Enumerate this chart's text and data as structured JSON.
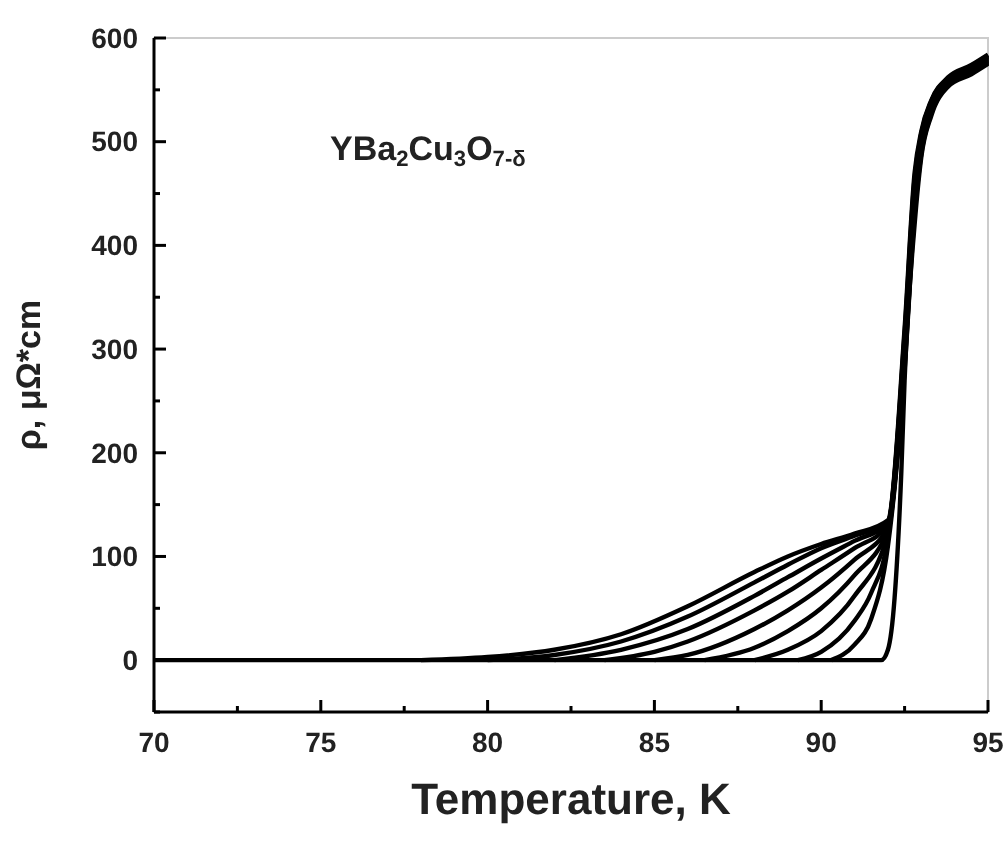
{
  "chart_data": {
    "type": "line",
    "xlabel": "Temperature, K",
    "ylabel": "ρ, μΩ*cm",
    "annotations": [
      "YBa$_{2}$Cu$_{3}$O$_{7-δ}$"
    ],
    "xlim": [
      70,
      95
    ],
    "ylim": [
      -50,
      600
    ],
    "xticks": [
      70,
      {
        "value": 72.5,
        "label": null
      },
      75,
      {
        "value": 77.5,
        "label": null
      },
      80,
      {
        "value": 82.5,
        "label": null
      },
      85,
      {
        "value": 87.5,
        "label": null
      },
      90,
      {
        "value": 92.5,
        "label": null
      },
      95
    ],
    "yticks": [
      {
        "value": -50,
        "label": null
      },
      0,
      {
        "value": 50,
        "label": null
      },
      100,
      {
        "value": 150,
        "label": null
      },
      200,
      {
        "value": 250,
        "label": null
      },
      300,
      {
        "value": 350,
        "label": null
      },
      400,
      {
        "value": 450,
        "label": null
      },
      500,
      {
        "value": 550,
        "label": null
      },
      600
    ],
    "line_style": "solid",
    "grid": false,
    "series": [
      {
        "color": "#000000",
        "x": [
          78,
          80,
          82,
          84,
          86,
          88,
          89,
          90,
          91,
          92,
          92.5,
          92.8,
          93,
          93.3,
          93.8,
          94.5,
          95
        ],
        "values": [
          0,
          3,
          10,
          25,
          52,
          85,
          100,
          112,
          122,
          135,
          320,
          470,
          510,
          540,
          562,
          574,
          584
        ]
      },
      {
        "color": "#000000",
        "x": [
          80,
          82,
          84,
          86,
          88,
          89,
          90,
          91,
          92,
          92.5,
          92.8,
          93,
          93.3,
          93.8,
          94.5,
          95
        ],
        "values": [
          0,
          5,
          18,
          42,
          75,
          92,
          108,
          120,
          133,
          315,
          465,
          508,
          539,
          561,
          573,
          583
        ]
      },
      {
        "color": "#000000",
        "x": [
          82,
          84,
          86,
          88,
          89,
          90,
          91,
          92,
          92.5,
          92.8,
          93,
          93.3,
          93.8,
          94.5,
          95
        ],
        "values": [
          0,
          10,
          30,
          62,
          80,
          98,
          115,
          132,
          310,
          460,
          505,
          538,
          560,
          572,
          582
        ]
      },
      {
        "color": "#000000",
        "x": [
          83.5,
          85,
          86,
          88,
          89,
          90,
          91,
          92,
          92.5,
          92.8,
          93,
          93.3,
          93.8,
          94.5,
          95
        ],
        "values": [
          0,
          8,
          18,
          48,
          66,
          87,
          108,
          130,
          305,
          455,
          502,
          536,
          559,
          571,
          581
        ]
      },
      {
        "color": "#000000",
        "x": [
          85,
          86,
          88,
          89,
          90,
          91,
          92,
          92.5,
          92.8,
          93,
          93.3,
          93.8,
          94.5,
          95
        ],
        "values": [
          0,
          5,
          30,
          48,
          70,
          97,
          128,
          300,
          450,
          500,
          535,
          558,
          570,
          580
        ]
      },
      {
        "color": "#000000",
        "x": [
          86.5,
          88,
          89,
          90,
          91,
          92,
          92.5,
          92.8,
          93,
          93.3,
          93.8,
          94.5,
          95
        ],
        "values": [
          0,
          12,
          28,
          50,
          82,
          126,
          295,
          445,
          497,
          533,
          557,
          569,
          579
        ]
      },
      {
        "color": "#000000",
        "x": [
          88,
          89,
          90,
          91,
          92,
          92.5,
          92.8,
          93,
          93.3,
          93.8,
          94.5,
          95
        ],
        "values": [
          0,
          10,
          28,
          62,
          122,
          290,
          440,
          494,
          531,
          556,
          568,
          578
        ]
      },
      {
        "color": "#000000",
        "x": [
          89.3,
          90,
          91,
          91.5,
          92,
          92.5,
          92.8,
          93,
          93.3,
          93.8,
          94.5,
          95
        ],
        "values": [
          0,
          8,
          38,
          65,
          118,
          285,
          435,
          491,
          529,
          555,
          567,
          577
        ]
      },
      {
        "color": "#000000",
        "x": [
          90.3,
          91,
          91.5,
          92,
          92.5,
          92.8,
          93,
          93.3,
          93.8,
          94.5,
          95
        ],
        "values": [
          0,
          15,
          40,
          110,
          280,
          430,
          488,
          527,
          554,
          566,
          576
        ]
      },
      {
        "color": "#000000",
        "x": [
          70,
          91.8,
          92,
          92.2,
          92.4,
          92.5,
          92.8,
          93,
          93.3,
          93.8,
          94.5,
          95
        ],
        "values": [
          0,
          0,
          10,
          60,
          180,
          270,
          420,
          485,
          525,
          553,
          565,
          575
        ]
      }
    ]
  }
}
